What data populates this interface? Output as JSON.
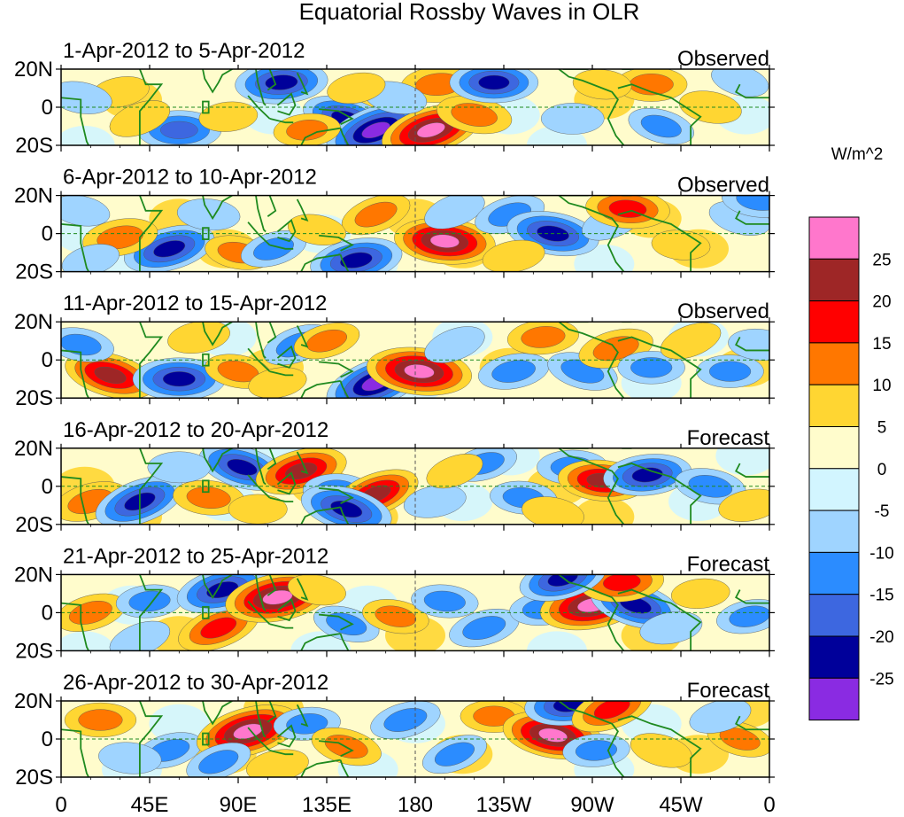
{
  "chart_data": {
    "type": "heatmap",
    "title": "Equatorial Rossby Waves in OLR",
    "units": "W/m^2",
    "x_ticks": [
      "0",
      "45E",
      "90E",
      "135E",
      "180",
      "135W",
      "90W",
      "45W",
      "0"
    ],
    "x_tick_lons": [
      0,
      45,
      90,
      135,
      180,
      225,
      270,
      315,
      360
    ],
    "y_ticks": [
      "20N",
      "0",
      "20S"
    ],
    "y_tick_lats": [
      20,
      0,
      -20
    ],
    "lon_range": [
      0,
      360
    ],
    "lat_range": [
      -20,
      20
    ],
    "colorbar": {
      "levels": [
        -25,
        -20,
        -15,
        -10,
        -5,
        0,
        5,
        10,
        15,
        20,
        25
      ],
      "labels": [
        "25",
        "20",
        "15",
        "10",
        "5",
        "0",
        "-5",
        "-10",
        "-15",
        "-20",
        "-25"
      ],
      "colors": [
        "#ff77cc",
        "#9e2626",
        "#ff0000",
        "#ff7700",
        "#ffd632",
        "#fffccc",
        "#d2f5ff",
        "#9fd4ff",
        "#2b8cff",
        "#3d67e0",
        "#00009a",
        "#8a2be2"
      ]
    },
    "panels": [
      {
        "date_range": "1-Apr-2012 to 5-Apr-2012",
        "type": "Observed",
        "anomalies": [
          {
            "lon": 112,
            "lat": 13,
            "value": -22
          },
          {
            "lon": 145,
            "lat": -6,
            "value": -20
          },
          {
            "lon": 160,
            "lat": -12,
            "value": -27
          },
          {
            "lon": 188,
            "lat": -12,
            "value": 26
          },
          {
            "lon": 192,
            "lat": 12,
            "value": 14
          },
          {
            "lon": 210,
            "lat": -4,
            "value": 14
          },
          {
            "lon": 220,
            "lat": 13,
            "value": -20
          },
          {
            "lon": 170,
            "lat": 5,
            "value": -8
          },
          {
            "lon": 150,
            "lat": 10,
            "value": 6
          },
          {
            "lon": 60,
            "lat": -12,
            "value": -18
          },
          {
            "lon": 40,
            "lat": -6,
            "value": 8
          },
          {
            "lon": 30,
            "lat": 8,
            "value": 6
          },
          {
            "lon": 260,
            "lat": -6,
            "value": -8
          },
          {
            "lon": 300,
            "lat": 12,
            "value": 12
          },
          {
            "lon": 330,
            "lat": 0,
            "value": 8
          },
          {
            "lon": 305,
            "lat": -10,
            "value": -10
          },
          {
            "lon": 10,
            "lat": 5,
            "value": -8
          },
          {
            "lon": 85,
            "lat": -5,
            "value": 6
          },
          {
            "lon": 125,
            "lat": -12,
            "value": 10
          },
          {
            "lon": 275,
            "lat": 12,
            "value": 6
          },
          {
            "lon": 345,
            "lat": 14,
            "value": -6
          }
        ]
      },
      {
        "date_range": "6-Apr-2012 to 10-Apr-2012",
        "type": "Observed",
        "anomalies": [
          {
            "lon": 55,
            "lat": -8,
            "value": -22
          },
          {
            "lon": 30,
            "lat": -2,
            "value": 14
          },
          {
            "lon": 90,
            "lat": -10,
            "value": 10
          },
          {
            "lon": 108,
            "lat": -8,
            "value": -10
          },
          {
            "lon": 150,
            "lat": -14,
            "value": -22
          },
          {
            "lon": 160,
            "lat": 10,
            "value": 12
          },
          {
            "lon": 195,
            "lat": -4,
            "value": 26
          },
          {
            "lon": 200,
            "lat": 12,
            "value": -8
          },
          {
            "lon": 228,
            "lat": 10,
            "value": -12
          },
          {
            "lon": 250,
            "lat": 0,
            "value": -22
          },
          {
            "lon": 280,
            "lat": 6,
            "value": -8
          },
          {
            "lon": 288,
            "lat": 13,
            "value": 18
          },
          {
            "lon": 75,
            "lat": 10,
            "value": -8
          },
          {
            "lon": 130,
            "lat": 2,
            "value": 6
          },
          {
            "lon": 315,
            "lat": -6,
            "value": 6
          },
          {
            "lon": 345,
            "lat": 8,
            "value": -8
          },
          {
            "lon": 10,
            "lat": 12,
            "value": -6
          },
          {
            "lon": 230,
            "lat": -12,
            "value": 8
          },
          {
            "lon": 15,
            "lat": -14,
            "value": -6
          },
          {
            "lon": 355,
            "lat": 18,
            "value": -14
          }
        ]
      },
      {
        "date_range": "11-Apr-2012 to 15-Apr-2012",
        "type": "Observed",
        "anomalies": [
          {
            "lon": 25,
            "lat": -8,
            "value": 22
          },
          {
            "lon": 60,
            "lat": -10,
            "value": -22
          },
          {
            "lon": 90,
            "lat": -6,
            "value": 10
          },
          {
            "lon": 120,
            "lat": 8,
            "value": -12
          },
          {
            "lon": 135,
            "lat": 10,
            "value": 10
          },
          {
            "lon": 160,
            "lat": -12,
            "value": -27
          },
          {
            "lon": 182,
            "lat": -6,
            "value": 28
          },
          {
            "lon": 200,
            "lat": 8,
            "value": -8
          },
          {
            "lon": 230,
            "lat": -6,
            "value": -12
          },
          {
            "lon": 245,
            "lat": 12,
            "value": 12
          },
          {
            "lon": 265,
            "lat": -6,
            "value": -12
          },
          {
            "lon": 282,
            "lat": 6,
            "value": 14
          },
          {
            "lon": 300,
            "lat": -4,
            "value": -10
          },
          {
            "lon": 320,
            "lat": 10,
            "value": 8
          },
          {
            "lon": 340,
            "lat": -6,
            "value": -10
          },
          {
            "lon": 10,
            "lat": 8,
            "value": -10
          },
          {
            "lon": 70,
            "lat": 12,
            "value": 8
          },
          {
            "lon": 110,
            "lat": -12,
            "value": 6
          },
          {
            "lon": 355,
            "lat": 8,
            "value": -8
          }
        ]
      },
      {
        "date_range": "16-Apr-2012 to 20-Apr-2012",
        "type": "Forecast",
        "anomalies": [
          {
            "lon": 15,
            "lat": -8,
            "value": 14
          },
          {
            "lon": 40,
            "lat": -8,
            "value": -22
          },
          {
            "lon": 75,
            "lat": -6,
            "value": 12
          },
          {
            "lon": 92,
            "lat": 10,
            "value": -20
          },
          {
            "lon": 122,
            "lat": 8,
            "value": 22
          },
          {
            "lon": 140,
            "lat": -2,
            "value": -10
          },
          {
            "lon": 160,
            "lat": -4,
            "value": 20
          },
          {
            "lon": 145,
            "lat": -12,
            "value": -22
          },
          {
            "lon": 190,
            "lat": -8,
            "value": -8
          },
          {
            "lon": 215,
            "lat": 12,
            "value": -10
          },
          {
            "lon": 235,
            "lat": -6,
            "value": -10
          },
          {
            "lon": 260,
            "lat": 10,
            "value": -12
          },
          {
            "lon": 275,
            "lat": 3,
            "value": 20
          },
          {
            "lon": 298,
            "lat": 6,
            "value": -20
          },
          {
            "lon": 330,
            "lat": 0,
            "value": -12
          },
          {
            "lon": 100,
            "lat": -12,
            "value": 6
          },
          {
            "lon": 60,
            "lat": 10,
            "value": -8
          },
          {
            "lon": 250,
            "lat": -14,
            "value": 8
          },
          {
            "lon": 350,
            "lat": -10,
            "value": 8
          },
          {
            "lon": 200,
            "lat": 8,
            "value": 6
          }
        ]
      },
      {
        "date_range": "21-Apr-2012 to 25-Apr-2012",
        "type": "Forecast",
        "anomalies": [
          {
            "lon": 15,
            "lat": 0,
            "value": 12
          },
          {
            "lon": 45,
            "lat": 6,
            "value": -10
          },
          {
            "lon": 80,
            "lat": -8,
            "value": 18
          },
          {
            "lon": 82,
            "lat": 12,
            "value": -22
          },
          {
            "lon": 110,
            "lat": 8,
            "value": 28
          },
          {
            "lon": 145,
            "lat": -6,
            "value": -10
          },
          {
            "lon": 170,
            "lat": -2,
            "value": 10
          },
          {
            "lon": 195,
            "lat": 6,
            "value": -10
          },
          {
            "lon": 215,
            "lat": -8,
            "value": -12
          },
          {
            "lon": 245,
            "lat": 2,
            "value": -10
          },
          {
            "lon": 270,
            "lat": 4,
            "value": 28
          },
          {
            "lon": 292,
            "lat": 4,
            "value": -22
          },
          {
            "lon": 285,
            "lat": 16,
            "value": 18
          },
          {
            "lon": 310,
            "lat": -8,
            "value": -8
          },
          {
            "lon": 325,
            "lat": 10,
            "value": 6
          },
          {
            "lon": 350,
            "lat": -2,
            "value": -10
          },
          {
            "lon": 255,
            "lat": 18,
            "value": -20
          },
          {
            "lon": 130,
            "lat": 12,
            "value": 6
          },
          {
            "lon": 40,
            "lat": -14,
            "value": -8
          }
        ]
      },
      {
        "date_range": "26-Apr-2012 to 30-Apr-2012",
        "type": "Forecast",
        "anomalies": [
          {
            "lon": 20,
            "lat": 10,
            "value": 12
          },
          {
            "lon": 55,
            "lat": -6,
            "value": -10
          },
          {
            "lon": 95,
            "lat": 4,
            "value": 28
          },
          {
            "lon": 80,
            "lat": -12,
            "value": -10
          },
          {
            "lon": 125,
            "lat": 8,
            "value": -10
          },
          {
            "lon": 145,
            "lat": -4,
            "value": 12
          },
          {
            "lon": 175,
            "lat": 10,
            "value": -12
          },
          {
            "lon": 200,
            "lat": -8,
            "value": -10
          },
          {
            "lon": 220,
            "lat": 12,
            "value": 10
          },
          {
            "lon": 250,
            "lat": 2,
            "value": 26
          },
          {
            "lon": 258,
            "lat": 18,
            "value": -20
          },
          {
            "lon": 280,
            "lat": 16,
            "value": 18
          },
          {
            "lon": 272,
            "lat": -6,
            "value": -10
          },
          {
            "lon": 305,
            "lat": -6,
            "value": 8
          },
          {
            "lon": 345,
            "lat": 0,
            "value": 10
          },
          {
            "lon": 335,
            "lat": 12,
            "value": -8
          },
          {
            "lon": 110,
            "lat": -14,
            "value": 8
          },
          {
            "lon": 35,
            "lat": -10,
            "value": -8
          }
        ]
      }
    ]
  }
}
